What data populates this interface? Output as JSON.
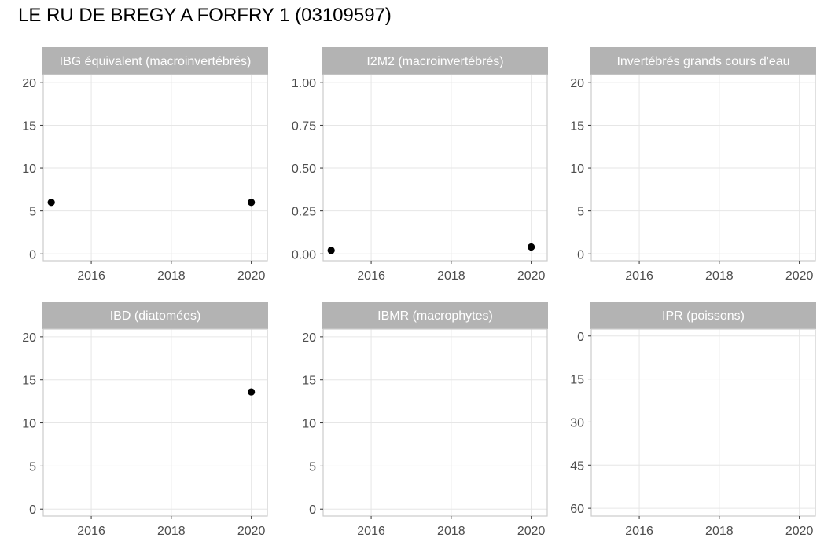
{
  "title": "LE RU DE BREGY A FORFRY 1 (03109597)",
  "colors": {
    "strip_background": "#b3b3b3",
    "strip_text": "#ffffff",
    "panel_border": "#cccccc",
    "grid": "#e6e6e6",
    "point": "#000000",
    "tick_text": "#4d4d4d"
  },
  "chart_data": [
    {
      "type": "scatter",
      "title": "IBG équivalent (macroinvertébrés)",
      "xlim": [
        2014.8,
        2020.4
      ],
      "x_ticks": [
        2016,
        2018,
        2020
      ],
      "ylim": [
        -0.8,
        20.9
      ],
      "y_ticks": [
        0,
        5,
        10,
        15,
        20
      ],
      "y_tick_labels": [
        "0",
        "5",
        "10",
        "15",
        "20"
      ],
      "reversed_y": false,
      "grid": true,
      "points": [
        {
          "x": 2015,
          "y": 6
        },
        {
          "x": 2020,
          "y": 6
        }
      ]
    },
    {
      "type": "scatter",
      "title": "I2M2 (macroinvertébrés)",
      "xlim": [
        2014.8,
        2020.4
      ],
      "x_ticks": [
        2016,
        2018,
        2020
      ],
      "ylim": [
        -0.04,
        1.045
      ],
      "y_ticks": [
        0,
        0.25,
        0.5,
        0.75,
        1.0
      ],
      "y_tick_labels": [
        "0.00",
        "0.25",
        "0.50",
        "0.75",
        "1.00"
      ],
      "reversed_y": false,
      "grid": true,
      "points": [
        {
          "x": 2015,
          "y": 0.02
        },
        {
          "x": 2020,
          "y": 0.04
        }
      ]
    },
    {
      "type": "scatter",
      "title": "Invertébrés grands cours d'eau",
      "xlim": [
        2014.8,
        2020.4
      ],
      "x_ticks": [
        2016,
        2018,
        2020
      ],
      "ylim": [
        -0.8,
        20.9
      ],
      "y_ticks": [
        0,
        5,
        10,
        15,
        20
      ],
      "y_tick_labels": [
        "0",
        "5",
        "10",
        "15",
        "20"
      ],
      "reversed_y": false,
      "grid": true,
      "points": []
    },
    {
      "type": "scatter",
      "title": "IBD (diatomées)",
      "xlim": [
        2014.8,
        2020.4
      ],
      "x_ticks": [
        2016,
        2018,
        2020
      ],
      "ylim": [
        -0.8,
        20.9
      ],
      "y_ticks": [
        0,
        5,
        10,
        15,
        20
      ],
      "y_tick_labels": [
        "0",
        "5",
        "10",
        "15",
        "20"
      ],
      "reversed_y": false,
      "grid": true,
      "points": [
        {
          "x": 2020,
          "y": 13.6
        }
      ]
    },
    {
      "type": "scatter",
      "title": "IBMR (macrophytes)",
      "xlim": [
        2014.8,
        2020.4
      ],
      "x_ticks": [
        2016,
        2018,
        2020
      ],
      "ylim": [
        -0.8,
        20.9
      ],
      "y_ticks": [
        0,
        5,
        10,
        15,
        20
      ],
      "y_tick_labels": [
        "0",
        "5",
        "10",
        "15",
        "20"
      ],
      "reversed_y": false,
      "grid": true,
      "points": []
    },
    {
      "type": "scatter",
      "title": "IPR (poissons)",
      "xlim": [
        2014.8,
        2020.4
      ],
      "x_ticks": [
        2016,
        2018,
        2020
      ],
      "ylim": [
        -2.4,
        62.7
      ],
      "y_ticks": [
        0,
        15,
        30,
        45,
        60
      ],
      "y_tick_labels": [
        "0",
        "15",
        "30",
        "45",
        "60"
      ],
      "reversed_y": true,
      "grid": true,
      "points": []
    }
  ]
}
